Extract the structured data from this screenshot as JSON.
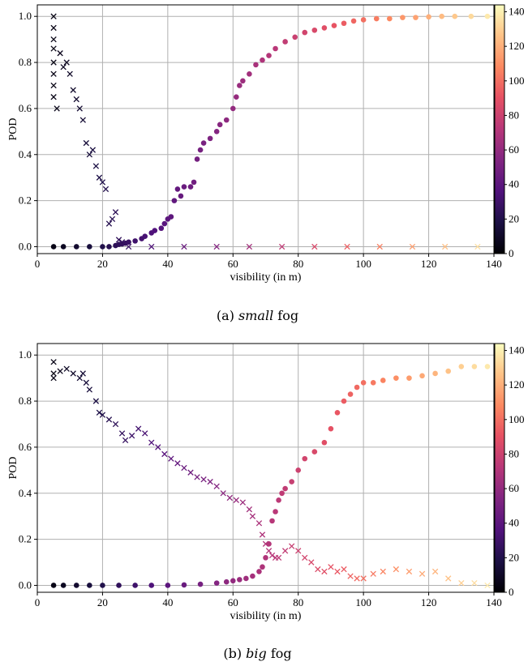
{
  "chart_data": [
    {
      "type": "scatter",
      "panel": "(a)",
      "caption_prefix": "(a)",
      "caption_emph": "small",
      "caption_suffix": "fog",
      "xlabel": "visibility (in m)",
      "ylabel": "POD",
      "xlim": [
        0,
        140
      ],
      "ylim": [
        -0.03,
        1.05
      ],
      "xticks": [
        0,
        20,
        40,
        60,
        80,
        100,
        120,
        140
      ],
      "yticks": [
        0.0,
        0.2,
        0.4,
        0.6,
        0.8,
        1.0
      ],
      "grid": true,
      "colorbar": {
        "range": [
          0,
          144
        ],
        "ticks": [
          0,
          20,
          40,
          60,
          80,
          100,
          120,
          140
        ],
        "colormap": "magma"
      },
      "series": [
        {
          "marker": "circle",
          "points": [
            [
              5,
              0.0
            ],
            [
              8,
              0.0
            ],
            [
              12,
              0.0
            ],
            [
              16,
              0.0
            ],
            [
              20,
              0.0
            ],
            [
              22,
              0.0
            ],
            [
              24,
              0.005
            ],
            [
              25,
              0.01
            ],
            [
              26,
              0.012
            ],
            [
              27,
              0.015
            ],
            [
              28,
              0.02
            ],
            [
              30,
              0.025
            ],
            [
              32,
              0.035
            ],
            [
              33,
              0.045
            ],
            [
              35,
              0.06
            ],
            [
              36,
              0.07
            ],
            [
              38,
              0.08
            ],
            [
              39,
              0.1
            ],
            [
              40,
              0.12
            ],
            [
              41,
              0.13
            ],
            [
              42,
              0.2
            ],
            [
              43,
              0.25
            ],
            [
              44,
              0.22
            ],
            [
              45,
              0.26
            ],
            [
              47,
              0.26
            ],
            [
              48,
              0.28
            ],
            [
              49,
              0.38
            ],
            [
              50,
              0.42
            ],
            [
              51,
              0.45
            ],
            [
              53,
              0.47
            ],
            [
              55,
              0.5
            ],
            [
              56,
              0.53
            ],
            [
              58,
              0.55
            ],
            [
              60,
              0.6
            ],
            [
              61,
              0.65
            ],
            [
              62,
              0.7
            ],
            [
              63,
              0.72
            ],
            [
              65,
              0.75
            ],
            [
              67,
              0.79
            ],
            [
              69,
              0.81
            ],
            [
              71,
              0.83
            ],
            [
              73,
              0.86
            ],
            [
              76,
              0.89
            ],
            [
              79,
              0.91
            ],
            [
              82,
              0.93
            ],
            [
              85,
              0.94
            ],
            [
              88,
              0.95
            ],
            [
              91,
              0.96
            ],
            [
              94,
              0.97
            ],
            [
              97,
              0.98
            ],
            [
              100,
              0.985
            ],
            [
              104,
              0.99
            ],
            [
              108,
              0.99
            ],
            [
              112,
              0.995
            ],
            [
              116,
              0.995
            ],
            [
              120,
              0.998
            ],
            [
              124,
              1.0
            ],
            [
              128,
              1.0
            ],
            [
              133,
              1.0
            ],
            [
              138,
              1.0
            ]
          ]
        },
        {
          "marker": "x",
          "points": [
            [
              5,
              1.0
            ],
            [
              5,
              0.95
            ],
            [
              5,
              0.9
            ],
            [
              5,
              0.86
            ],
            [
              5,
              0.8
            ],
            [
              5,
              0.75
            ],
            [
              5,
              0.7
            ],
            [
              5,
              0.65
            ],
            [
              6,
              0.6
            ],
            [
              7,
              0.84
            ],
            [
              8,
              0.78
            ],
            [
              9,
              0.8
            ],
            [
              10,
              0.75
            ],
            [
              11,
              0.68
            ],
            [
              12,
              0.64
            ],
            [
              13,
              0.6
            ],
            [
              14,
              0.55
            ],
            [
              15,
              0.45
            ],
            [
              16,
              0.4
            ],
            [
              17,
              0.42
            ],
            [
              18,
              0.35
            ],
            [
              19,
              0.3
            ],
            [
              20,
              0.28
            ],
            [
              21,
              0.25
            ],
            [
              22,
              0.1
            ],
            [
              23,
              0.12
            ],
            [
              24,
              0.15
            ],
            [
              25,
              0.03
            ],
            [
              26,
              0.02
            ],
            [
              28,
              0.0
            ],
            [
              35,
              0.0
            ],
            [
              45,
              0.0
            ],
            [
              55,
              0.0
            ],
            [
              65,
              0.0
            ],
            [
              75,
              0.0
            ],
            [
              85,
              0.0
            ],
            [
              95,
              0.0
            ],
            [
              105,
              0.0
            ],
            [
              115,
              0.0
            ],
            [
              125,
              0.0
            ],
            [
              135,
              0.0
            ]
          ]
        }
      ]
    },
    {
      "type": "scatter",
      "panel": "(b)",
      "caption_prefix": "(b)",
      "caption_emph": "big",
      "caption_suffix": "fog",
      "xlabel": "visibility (in m)",
      "ylabel": "POD",
      "xlim": [
        0,
        140
      ],
      "ylim": [
        -0.03,
        1.05
      ],
      "xticks": [
        0,
        20,
        40,
        60,
        80,
        100,
        120,
        140
      ],
      "yticks": [
        0.0,
        0.2,
        0.4,
        0.6,
        0.8,
        1.0
      ],
      "grid": true,
      "colorbar": {
        "range": [
          0,
          144
        ],
        "ticks": [
          0,
          20,
          40,
          60,
          80,
          100,
          120,
          140
        ],
        "colormap": "magma"
      },
      "series": [
        {
          "marker": "circle",
          "points": [
            [
              5,
              0.0
            ],
            [
              8,
              0.0
            ],
            [
              12,
              0.0
            ],
            [
              16,
              0.0
            ],
            [
              20,
              0.0
            ],
            [
              25,
              0.0
            ],
            [
              30,
              0.0
            ],
            [
              35,
              0.0
            ],
            [
              40,
              0.0
            ],
            [
              45,
              0.002
            ],
            [
              50,
              0.005
            ],
            [
              55,
              0.01
            ],
            [
              58,
              0.015
            ],
            [
              60,
              0.02
            ],
            [
              62,
              0.025
            ],
            [
              64,
              0.03
            ],
            [
              66,
              0.04
            ],
            [
              68,
              0.06
            ],
            [
              69,
              0.08
            ],
            [
              70,
              0.12
            ],
            [
              71,
              0.18
            ],
            [
              72,
              0.28
            ],
            [
              73,
              0.32
            ],
            [
              74,
              0.37
            ],
            [
              75,
              0.4
            ],
            [
              76,
              0.42
            ],
            [
              78,
              0.45
            ],
            [
              80,
              0.5
            ],
            [
              82,
              0.55
            ],
            [
              85,
              0.58
            ],
            [
              88,
              0.62
            ],
            [
              90,
              0.68
            ],
            [
              92,
              0.75
            ],
            [
              94,
              0.8
            ],
            [
              96,
              0.83
            ],
            [
              98,
              0.86
            ],
            [
              100,
              0.88
            ],
            [
              103,
              0.88
            ],
            [
              106,
              0.89
            ],
            [
              110,
              0.9
            ],
            [
              114,
              0.9
            ],
            [
              118,
              0.91
            ],
            [
              122,
              0.92
            ],
            [
              126,
              0.93
            ],
            [
              130,
              0.95
            ],
            [
              134,
              0.95
            ],
            [
              138,
              0.95
            ]
          ]
        },
        {
          "marker": "x",
          "points": [
            [
              5,
              0.97
            ],
            [
              5,
              0.92
            ],
            [
              5,
              0.9
            ],
            [
              7,
              0.93
            ],
            [
              9,
              0.94
            ],
            [
              11,
              0.92
            ],
            [
              13,
              0.9
            ],
            [
              14,
              0.92
            ],
            [
              15,
              0.88
            ],
            [
              16,
              0.85
            ],
            [
              18,
              0.8
            ],
            [
              19,
              0.75
            ],
            [
              20,
              0.74
            ],
            [
              22,
              0.72
            ],
            [
              24,
              0.7
            ],
            [
              26,
              0.66
            ],
            [
              27,
              0.63
            ],
            [
              29,
              0.65
            ],
            [
              31,
              0.68
            ],
            [
              33,
              0.66
            ],
            [
              35,
              0.62
            ],
            [
              37,
              0.6
            ],
            [
              39,
              0.57
            ],
            [
              41,
              0.55
            ],
            [
              43,
              0.53
            ],
            [
              45,
              0.51
            ],
            [
              47,
              0.49
            ],
            [
              49,
              0.47
            ],
            [
              51,
              0.46
            ],
            [
              53,
              0.45
            ],
            [
              55,
              0.43
            ],
            [
              57,
              0.4
            ],
            [
              59,
              0.38
            ],
            [
              61,
              0.37
            ],
            [
              63,
              0.36
            ],
            [
              65,
              0.33
            ],
            [
              66,
              0.3
            ],
            [
              68,
              0.27
            ],
            [
              69,
              0.22
            ],
            [
              70,
              0.18
            ],
            [
              71,
              0.15
            ],
            [
              72,
              0.13
            ],
            [
              73,
              0.12
            ],
            [
              74,
              0.12
            ],
            [
              76,
              0.15
            ],
            [
              78,
              0.17
            ],
            [
              80,
              0.15
            ],
            [
              82,
              0.12
            ],
            [
              84,
              0.1
            ],
            [
              86,
              0.07
            ],
            [
              88,
              0.06
            ],
            [
              90,
              0.08
            ],
            [
              92,
              0.06
            ],
            [
              94,
              0.07
            ],
            [
              96,
              0.04
            ],
            [
              98,
              0.03
            ],
            [
              100,
              0.03
            ],
            [
              103,
              0.05
            ],
            [
              106,
              0.06
            ],
            [
              110,
              0.07
            ],
            [
              114,
              0.06
            ],
            [
              118,
              0.05
            ],
            [
              122,
              0.06
            ],
            [
              126,
              0.03
            ],
            [
              130,
              0.01
            ],
            [
              134,
              0.01
            ],
            [
              138,
              0.0
            ]
          ]
        }
      ]
    }
  ]
}
